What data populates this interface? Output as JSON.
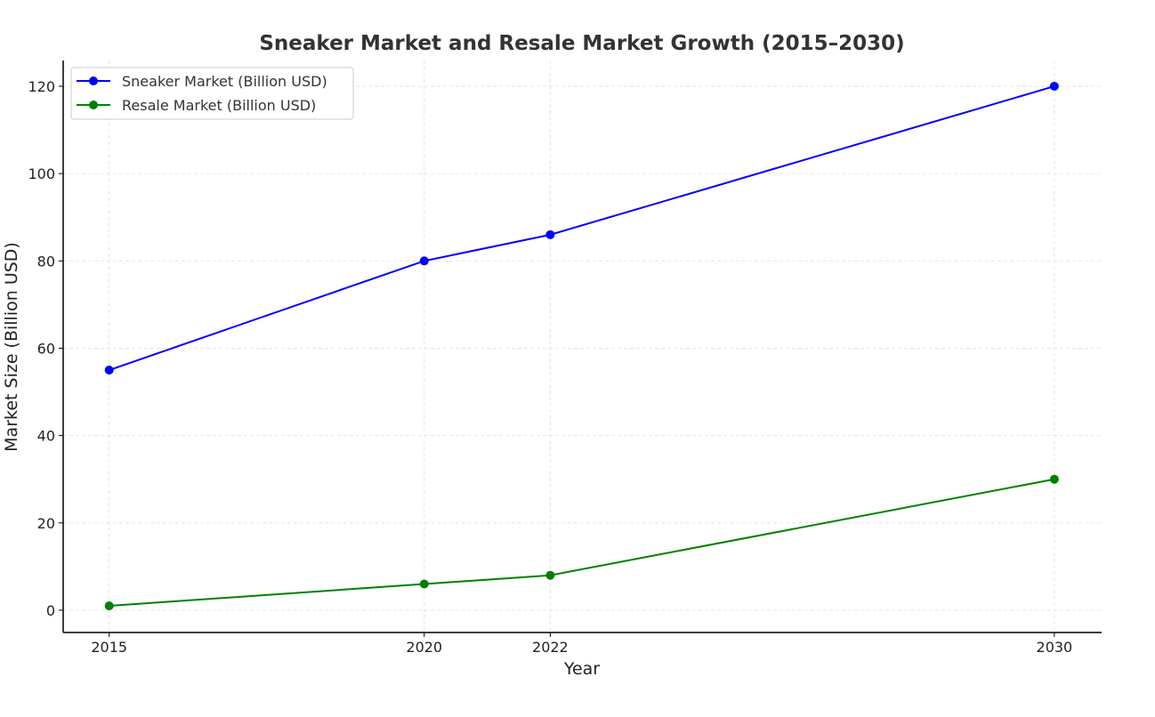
{
  "chart_data": {
    "type": "line",
    "title": "Sneaker Market and Resale Market Growth (2015–2030)",
    "xlabel": "Year",
    "ylabel": "Market Size (Billion USD)",
    "x": [
      2015,
      2020,
      2022,
      2030
    ],
    "xticks": [
      "2015",
      "2020",
      "2022",
      "2030"
    ],
    "yticks": [
      0,
      20,
      40,
      60,
      80,
      100,
      120
    ],
    "xlim": [
      2014.27,
      2030.75
    ],
    "ylim": [
      -5.1,
      125.9
    ],
    "grid": true,
    "legend_position": "top-left",
    "series": [
      {
        "name": "Sneaker Market (Billion USD)",
        "values": [
          55,
          80,
          86,
          120
        ],
        "color": "#0000ff",
        "marker": "circle"
      },
      {
        "name": "Resale Market (Billion USD)",
        "values": [
          1,
          6,
          8,
          30
        ],
        "color": "#008000",
        "marker": "circle"
      }
    ]
  }
}
